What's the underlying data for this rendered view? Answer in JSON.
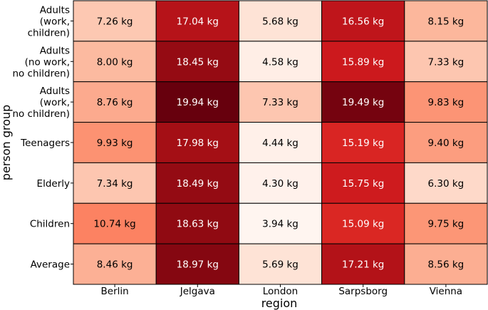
{
  "chart_data": {
    "type": "heatmap",
    "xlabel": "region",
    "ylabel": "person group",
    "x_categories": [
      "Berlin",
      "Jelgava",
      "London",
      "Sarpsborg",
      "Vienna"
    ],
    "y_categories": [
      "Adults (work, children)",
      "Adults (no work, no children)",
      "Adults (work, no children)",
      "Teenagers",
      "Elderly",
      "Children",
      "Average"
    ],
    "y_category_lines": [
      [
        "Adults",
        "(work,",
        "children)"
      ],
      [
        "Adults",
        "(no work,",
        "no children)"
      ],
      [
        "Adults",
        "(work,",
        "no children)"
      ],
      [
        "Teenagers"
      ],
      [
        "Elderly"
      ],
      [
        "Children"
      ],
      [
        "Average"
      ]
    ],
    "unit": "kg",
    "values": [
      [
        7.26,
        17.04,
        5.68,
        16.56,
        8.15
      ],
      [
        8.0,
        18.45,
        4.58,
        15.89,
        7.33
      ],
      [
        8.76,
        19.94,
        7.33,
        19.49,
        9.83
      ],
      [
        9.93,
        17.98,
        4.44,
        15.19,
        9.4
      ],
      [
        7.34,
        18.49,
        4.3,
        15.75,
        6.3
      ],
      [
        10.74,
        18.63,
        3.94,
        15.09,
        9.75
      ],
      [
        8.46,
        18.97,
        5.69,
        17.21,
        8.56
      ]
    ],
    "cell_labels": [
      [
        "7.26 kg",
        "17.04 kg",
        "5.68 kg",
        "16.56 kg",
        "8.15 kg"
      ],
      [
        "8.00 kg",
        "18.45 kg",
        "4.58 kg",
        "15.89 kg",
        "7.33 kg"
      ],
      [
        "8.76 kg",
        "19.94 kg",
        "7.33 kg",
        "19.49 kg",
        "9.83 kg"
      ],
      [
        "9.93 kg",
        "17.98 kg",
        "4.44 kg",
        "15.19 kg",
        "9.40 kg"
      ],
      [
        "7.34 kg",
        "18.49 kg",
        "4.30 kg",
        "15.75 kg",
        "6.30 kg"
      ],
      [
        "10.74 kg",
        "18.63 kg",
        "3.94 kg",
        "15.09 kg",
        "9.75 kg"
      ],
      [
        "8.46 kg",
        "18.97 kg",
        "5.69 kg",
        "17.21 kg",
        "8.56 kg"
      ]
    ],
    "colormap": "Reds",
    "color_range": [
      3.94,
      19.94
    ],
    "colors": {
      "low": "#fff5f0",
      "high": "#67000d",
      "cell_border": "#000000"
    }
  }
}
